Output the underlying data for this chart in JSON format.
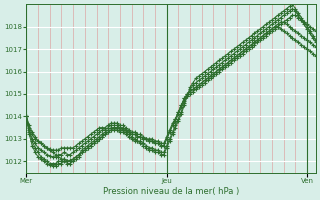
{
  "title": "",
  "xlabel": "Pression niveau de la mer( hPa )",
  "ylabel": "",
  "bg_color": "#d8eee8",
  "plot_bg_color": "#d8eee8",
  "grid_color_major": "#ffffff",
  "grid_color_minor": "#e08080",
  "line_color": "#2d6e2d",
  "marker_color": "#2d6e2d",
  "ylim": [
    1011.5,
    1019.0
  ],
  "yticks": [
    1012,
    1013,
    1014,
    1015,
    1016,
    1017,
    1018
  ],
  "day_labels": [
    "Mer",
    "Jeu",
    "Ven"
  ],
  "day_positions": [
    0,
    48,
    96
  ],
  "total_points": 100,
  "series": [
    [
      1014.0,
      1013.5,
      1013.2,
      1013.0,
      1012.9,
      1012.8,
      1012.7,
      1012.6,
      1012.5,
      1012.4,
      1012.3,
      1012.2,
      1012.1,
      1012.1,
      1012.0,
      1012.05,
      1012.1,
      1012.2,
      1012.3,
      1012.4,
      1012.5,
      1012.6,
      1012.7,
      1012.8,
      1012.9,
      1013.0,
      1013.1,
      1013.2,
      1013.3,
      1013.4,
      1013.5,
      1013.5,
      1013.5,
      1013.4,
      1013.4,
      1013.3,
      1013.2,
      1013.2,
      1013.1,
      1013.1,
      1013.0,
      1013.0,
      1012.9,
      1012.9,
      1012.8,
      1012.8,
      1012.7,
      1012.7,
      1013.0,
      1013.3,
      1013.6,
      1013.9,
      1014.2,
      1014.5,
      1014.8,
      1014.9,
      1015.0,
      1015.1,
      1015.2,
      1015.3,
      1015.4,
      1015.5,
      1015.6,
      1015.7,
      1015.8,
      1015.9,
      1016.0,
      1016.1,
      1016.2,
      1016.3,
      1016.4,
      1016.5,
      1016.6,
      1016.7,
      1016.8,
      1016.9,
      1017.0,
      1017.1,
      1017.2,
      1017.3,
      1017.4,
      1017.5,
      1017.6,
      1017.7,
      1017.8,
      1017.9,
      1018.0,
      1018.1,
      1018.2,
      1018.3,
      1018.4,
      1018.5,
      1018.5,
      1018.4,
      1018.3,
      1018.2,
      1018.1,
      1018.0,
      1017.9,
      1017.8
    ],
    [
      1014.0,
      1013.3,
      1012.9,
      1012.6,
      1012.4,
      1012.2,
      1012.1,
      1012.0,
      1011.9,
      1011.9,
      1011.9,
      1012.0,
      1012.0,
      1012.1,
      1012.0,
      1012.0,
      1012.1,
      1012.2,
      1012.3,
      1012.5,
      1012.6,
      1012.7,
      1012.8,
      1012.9,
      1013.0,
      1013.1,
      1013.2,
      1013.3,
      1013.4,
      1013.5,
      1013.5,
      1013.5,
      1013.4,
      1013.4,
      1013.3,
      1013.2,
      1013.1,
      1013.0,
      1012.9,
      1012.9,
      1012.8,
      1012.7,
      1012.6,
      1012.6,
      1012.5,
      1012.5,
      1012.4,
      1012.4,
      1012.7,
      1013.0,
      1013.3,
      1013.6,
      1013.9,
      1014.2,
      1014.6,
      1014.9,
      1015.2,
      1015.4,
      1015.5,
      1015.6,
      1015.7,
      1015.8,
      1015.9,
      1016.0,
      1016.1,
      1016.2,
      1016.3,
      1016.4,
      1016.5,
      1016.6,
      1016.7,
      1016.8,
      1016.9,
      1017.0,
      1017.1,
      1017.2,
      1017.3,
      1017.4,
      1017.5,
      1017.6,
      1017.7,
      1017.8,
      1017.9,
      1018.0,
      1018.1,
      1018.2,
      1018.3,
      1018.4,
      1018.5,
      1018.6,
      1018.7,
      1018.8,
      1018.7,
      1018.5,
      1018.3,
      1018.1,
      1017.9,
      1017.7,
      1017.5,
      1017.3
    ],
    [
      1014.0,
      1013.2,
      1012.7,
      1012.4,
      1012.2,
      1012.1,
      1012.0,
      1011.9,
      1011.85,
      1011.8,
      1011.8,
      1011.9,
      1011.9,
      1012.0,
      1011.9,
      1011.9,
      1012.0,
      1012.1,
      1012.2,
      1012.4,
      1012.5,
      1012.6,
      1012.7,
      1012.8,
      1012.9,
      1013.0,
      1013.1,
      1013.2,
      1013.3,
      1013.4,
      1013.4,
      1013.4,
      1013.3,
      1013.3,
      1013.2,
      1013.1,
      1013.0,
      1012.9,
      1012.9,
      1012.8,
      1012.7,
      1012.6,
      1012.5,
      1012.5,
      1012.4,
      1012.4,
      1012.3,
      1012.3,
      1012.6,
      1012.9,
      1013.2,
      1013.5,
      1013.8,
      1014.1,
      1014.5,
      1014.9,
      1015.3,
      1015.5,
      1015.7,
      1015.8,
      1015.9,
      1016.0,
      1016.1,
      1016.2,
      1016.3,
      1016.4,
      1016.5,
      1016.6,
      1016.7,
      1016.8,
      1016.9,
      1017.0,
      1017.1,
      1017.2,
      1017.3,
      1017.4,
      1017.5,
      1017.6,
      1017.7,
      1017.8,
      1017.9,
      1018.0,
      1018.1,
      1018.2,
      1018.3,
      1018.4,
      1018.5,
      1018.6,
      1018.7,
      1018.8,
      1018.9,
      1019.0,
      1018.8,
      1018.6,
      1018.4,
      1018.2,
      1018.0,
      1017.8,
      1017.6,
      1017.4
    ],
    [
      1014.0,
      1013.4,
      1013.0,
      1012.8,
      1012.6,
      1012.5,
      1012.4,
      1012.3,
      1012.25,
      1012.2,
      1012.2,
      1012.3,
      1012.3,
      1012.4,
      1012.3,
      1012.3,
      1012.4,
      1012.5,
      1012.6,
      1012.7,
      1012.8,
      1012.9,
      1013.0,
      1013.1,
      1013.2,
      1013.3,
      1013.4,
      1013.4,
      1013.5,
      1013.6,
      1013.6,
      1013.6,
      1013.5,
      1013.5,
      1013.4,
      1013.3,
      1013.2,
      1013.2,
      1013.1,
      1013.1,
      1013.0,
      1013.0,
      1012.9,
      1012.9,
      1012.8,
      1012.8,
      1012.7,
      1012.7,
      1013.0,
      1013.3,
      1013.6,
      1013.8,
      1014.1,
      1014.4,
      1014.7,
      1015.0,
      1015.1,
      1015.2,
      1015.3,
      1015.4,
      1015.5,
      1015.6,
      1015.7,
      1015.8,
      1015.9,
      1016.0,
      1016.1,
      1016.2,
      1016.3,
      1016.4,
      1016.5,
      1016.6,
      1016.7,
      1016.8,
      1016.9,
      1017.0,
      1017.1,
      1017.2,
      1017.3,
      1017.4,
      1017.5,
      1017.6,
      1017.7,
      1017.8,
      1017.9,
      1018.0,
      1018.1,
      1018.2,
      1018.2,
      1018.1,
      1018.0,
      1017.9,
      1017.8,
      1017.7,
      1017.6,
      1017.5,
      1017.4,
      1017.3,
      1017.2,
      1017.1
    ],
    [
      1014.0,
      1013.6,
      1013.3,
      1013.1,
      1012.9,
      1012.8,
      1012.7,
      1012.6,
      1012.55,
      1012.5,
      1012.5,
      1012.5,
      1012.6,
      1012.6,
      1012.6,
      1012.6,
      1012.6,
      1012.7,
      1012.8,
      1012.9,
      1013.0,
      1013.1,
      1013.2,
      1013.3,
      1013.4,
      1013.5,
      1013.5,
      1013.5,
      1013.6,
      1013.7,
      1013.7,
      1013.7,
      1013.6,
      1013.6,
      1013.5,
      1013.4,
      1013.3,
      1013.3,
      1013.2,
      1013.2,
      1013.1,
      1013.0,
      1013.0,
      1013.0,
      1012.9,
      1012.9,
      1012.8,
      1012.8,
      1013.1,
      1013.4,
      1013.7,
      1013.9,
      1014.2,
      1014.5,
      1014.8,
      1015.0,
      1015.1,
      1015.2,
      1015.3,
      1015.4,
      1015.5,
      1015.6,
      1015.7,
      1015.8,
      1015.9,
      1016.0,
      1016.1,
      1016.2,
      1016.3,
      1016.4,
      1016.5,
      1016.6,
      1016.7,
      1016.8,
      1016.9,
      1017.0,
      1017.1,
      1017.2,
      1017.3,
      1017.4,
      1017.5,
      1017.6,
      1017.7,
      1017.8,
      1017.9,
      1018.0,
      1018.0,
      1017.9,
      1017.8,
      1017.7,
      1017.6,
      1017.5,
      1017.4,
      1017.3,
      1017.2,
      1017.1,
      1017.0,
      1016.9,
      1016.8,
      1016.7
    ]
  ]
}
